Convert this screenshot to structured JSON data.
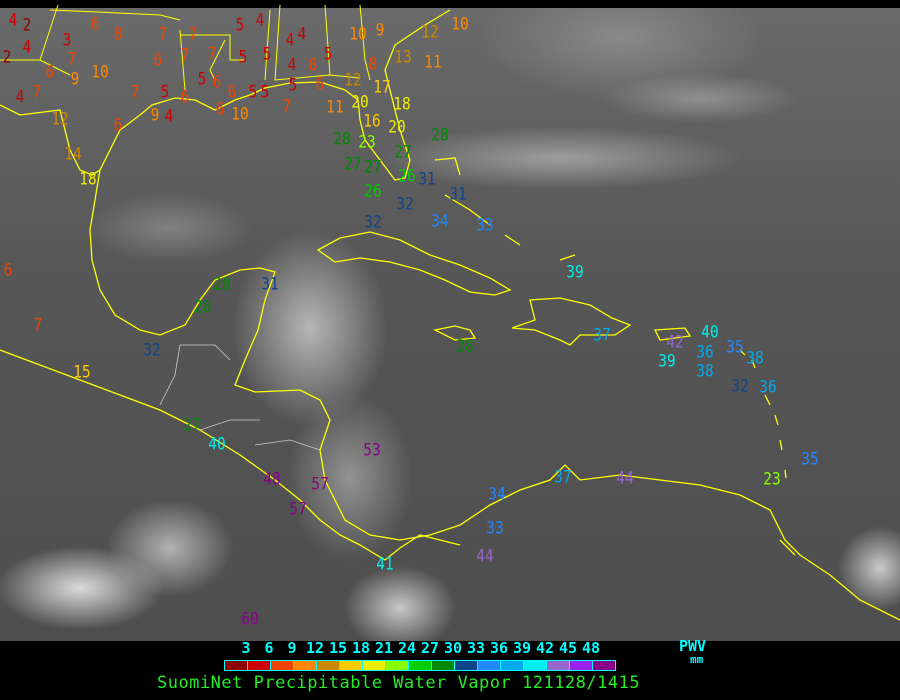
{
  "map": {
    "coastline_color": "#ffff00",
    "stations": [
      "4",
      "2",
      "4",
      "2",
      "3",
      "6",
      "8",
      "7",
      "7",
      "5",
      "4",
      "6",
      "9",
      "10",
      "7",
      "6",
      "5",
      "7",
      "4",
      "6",
      "4",
      "7",
      "12",
      "14",
      "18",
      "6",
      "9",
      "7",
      "7",
      "6",
      "5",
      "5",
      "5",
      "5",
      "6",
      "6",
      "5",
      "10",
      "5",
      "7",
      "6",
      "8",
      "4",
      "4",
      "5",
      "4",
      "11",
      "12",
      "10",
      "9",
      "8",
      "13",
      "12",
      "11",
      "10",
      "17",
      "16",
      "18",
      "20",
      "20",
      "23",
      "27",
      "28",
      "28",
      "27",
      "26",
      "27",
      "26",
      "32",
      "31",
      "34",
      "32",
      "6",
      "7",
      "15",
      "32",
      "28",
      "28",
      "31",
      "27",
      "40",
      "48",
      "57",
      "57",
      "53",
      "60",
      "41",
      "44",
      "33",
      "34",
      "37",
      "44",
      "23",
      "35",
      "36",
      "38",
      "32",
      "35",
      "36",
      "38",
      "40",
      "42",
      "39",
      "37",
      "28",
      "39",
      "33",
      "31"
    ]
  },
  "legend": {
    "ticks": [
      "3",
      "6",
      "9",
      "12",
      "15",
      "18",
      "21",
      "24",
      "27",
      "30",
      "33",
      "36",
      "39",
      "42",
      "45",
      "48"
    ],
    "colors": [
      "#8b0000",
      "#cc0000",
      "#ee4400",
      "#ff8800",
      "#cc8800",
      "#ffcc00",
      "#eeee00",
      "#88ff00",
      "#00cc00",
      "#008800",
      "#114488",
      "#2288ff",
      "#00aaee",
      "#00eeee",
      "#9966cc",
      "#9922ee",
      "#880088"
    ],
    "variable": "PWV",
    "unit": "mm"
  },
  "title": "SuomiNet Precipitable Water Vapor 121128/1415"
}
